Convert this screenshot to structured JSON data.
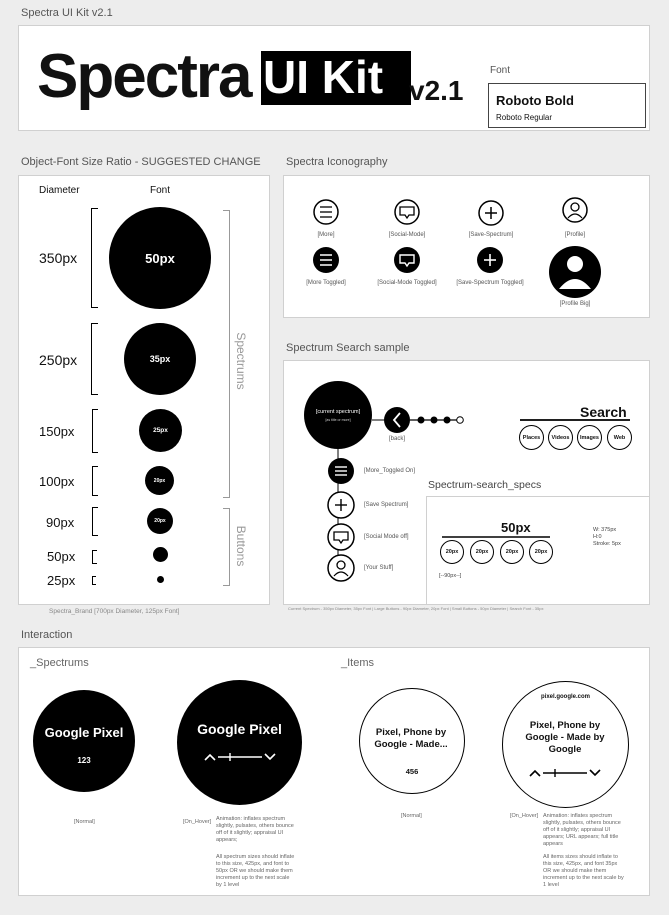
{
  "page": {
    "title": "Spectra UI Kit v2.1"
  },
  "header": {
    "spectra": "Spectra",
    "uikit": "UI Kit",
    "version": "v2.1",
    "font_label": "Font",
    "font_bold": "Roboto Bold",
    "font_regular": "Roboto Regular"
  },
  "ratio": {
    "title": "Object-Font Size Ratio - SUGGESTED CHANGE",
    "col_diameter": "Diameter",
    "col_font": "Font",
    "rows": [
      {
        "d": "350px",
        "f": "50px"
      },
      {
        "d": "250px",
        "f": "35px"
      },
      {
        "d": "150px",
        "f": "25px"
      },
      {
        "d": "100px",
        "f": "20px"
      },
      {
        "d": "90px",
        "f": "20px"
      },
      {
        "d": "50px",
        "f": ""
      },
      {
        "d": "25px",
        "f": ""
      }
    ],
    "group_spectrums": "Spectrums",
    "group_buttons": "Buttons",
    "footnote": "Spectra_Brand [700px Diameter, 125px Font]"
  },
  "iconography": {
    "title": "Spectra Iconography",
    "icons": [
      "[More]",
      "[Social-Mode]",
      "[Save-Spectrum]",
      "[Profile]",
      "[More Toggled]",
      "[Social-Mode Toggled]",
      "[Save-Spectrum Toggled]",
      "[Profile Big]"
    ]
  },
  "search_sample": {
    "title": "Spectrum Search sample",
    "current": "[current spectrum]",
    "current_sub": "[as title or more]",
    "back": "[back]",
    "search": "Search",
    "pills": [
      "Places",
      "Videos",
      "Images",
      "Web"
    ],
    "menu": [
      "[More_Toggled On]",
      "[Save Spectrum]",
      "[Social Mode off]",
      "[Your Stuff]"
    ],
    "specs_title": "Spectrum-search_specs",
    "specs_big": "50px",
    "specs_small": [
      "20px",
      "20px",
      "20px",
      "20px"
    ],
    "specs_note": [
      "W: 375px",
      "H:0",
      "Stroke: 5px"
    ],
    "specs_gap": "[--90px--]",
    "footnote": "Current Spectrum - 350px Diameter, 35px Font | Large Buttons - 90px Diameter, 20px Font | Small Buttons - 50px Diameter | Search Font - 35px"
  },
  "interaction": {
    "title": "Interaction",
    "spectrums_label": "_Spectrums",
    "items_label": "_Items",
    "sp_normal_text": "Google Pixel",
    "sp_normal_count": "123",
    "sp_hover_text": "Google Pixel",
    "it_normal_text": "Pixel, Phone by Google - Made...",
    "it_normal_count": "456",
    "it_hover_url": "pixel.google.com",
    "it_hover_text": "Pixel, Phone by Google - Made by Google",
    "normal": "[Normal]",
    "on_hover": "[On_Hover]",
    "sp_anim": "Animation: inflates spectrum slightly, pulsates, others bounce off of it slightly; appraisal UI appears;",
    "sp_anim2": "All spectrum sizes should inflate to this size, 425px, and font to 50px OR we should make them increment up to the next scale by 1 level",
    "it_anim": "Animation: inflates spectrum slightly, pulsates, others bounce off of it slightly; appraisal UI appears; URL appears; full title appears",
    "it_anim2": "All items sizes should inflate to this size, 425px, and font 35px OR we should make them increment up to the next scale by 1 level"
  }
}
